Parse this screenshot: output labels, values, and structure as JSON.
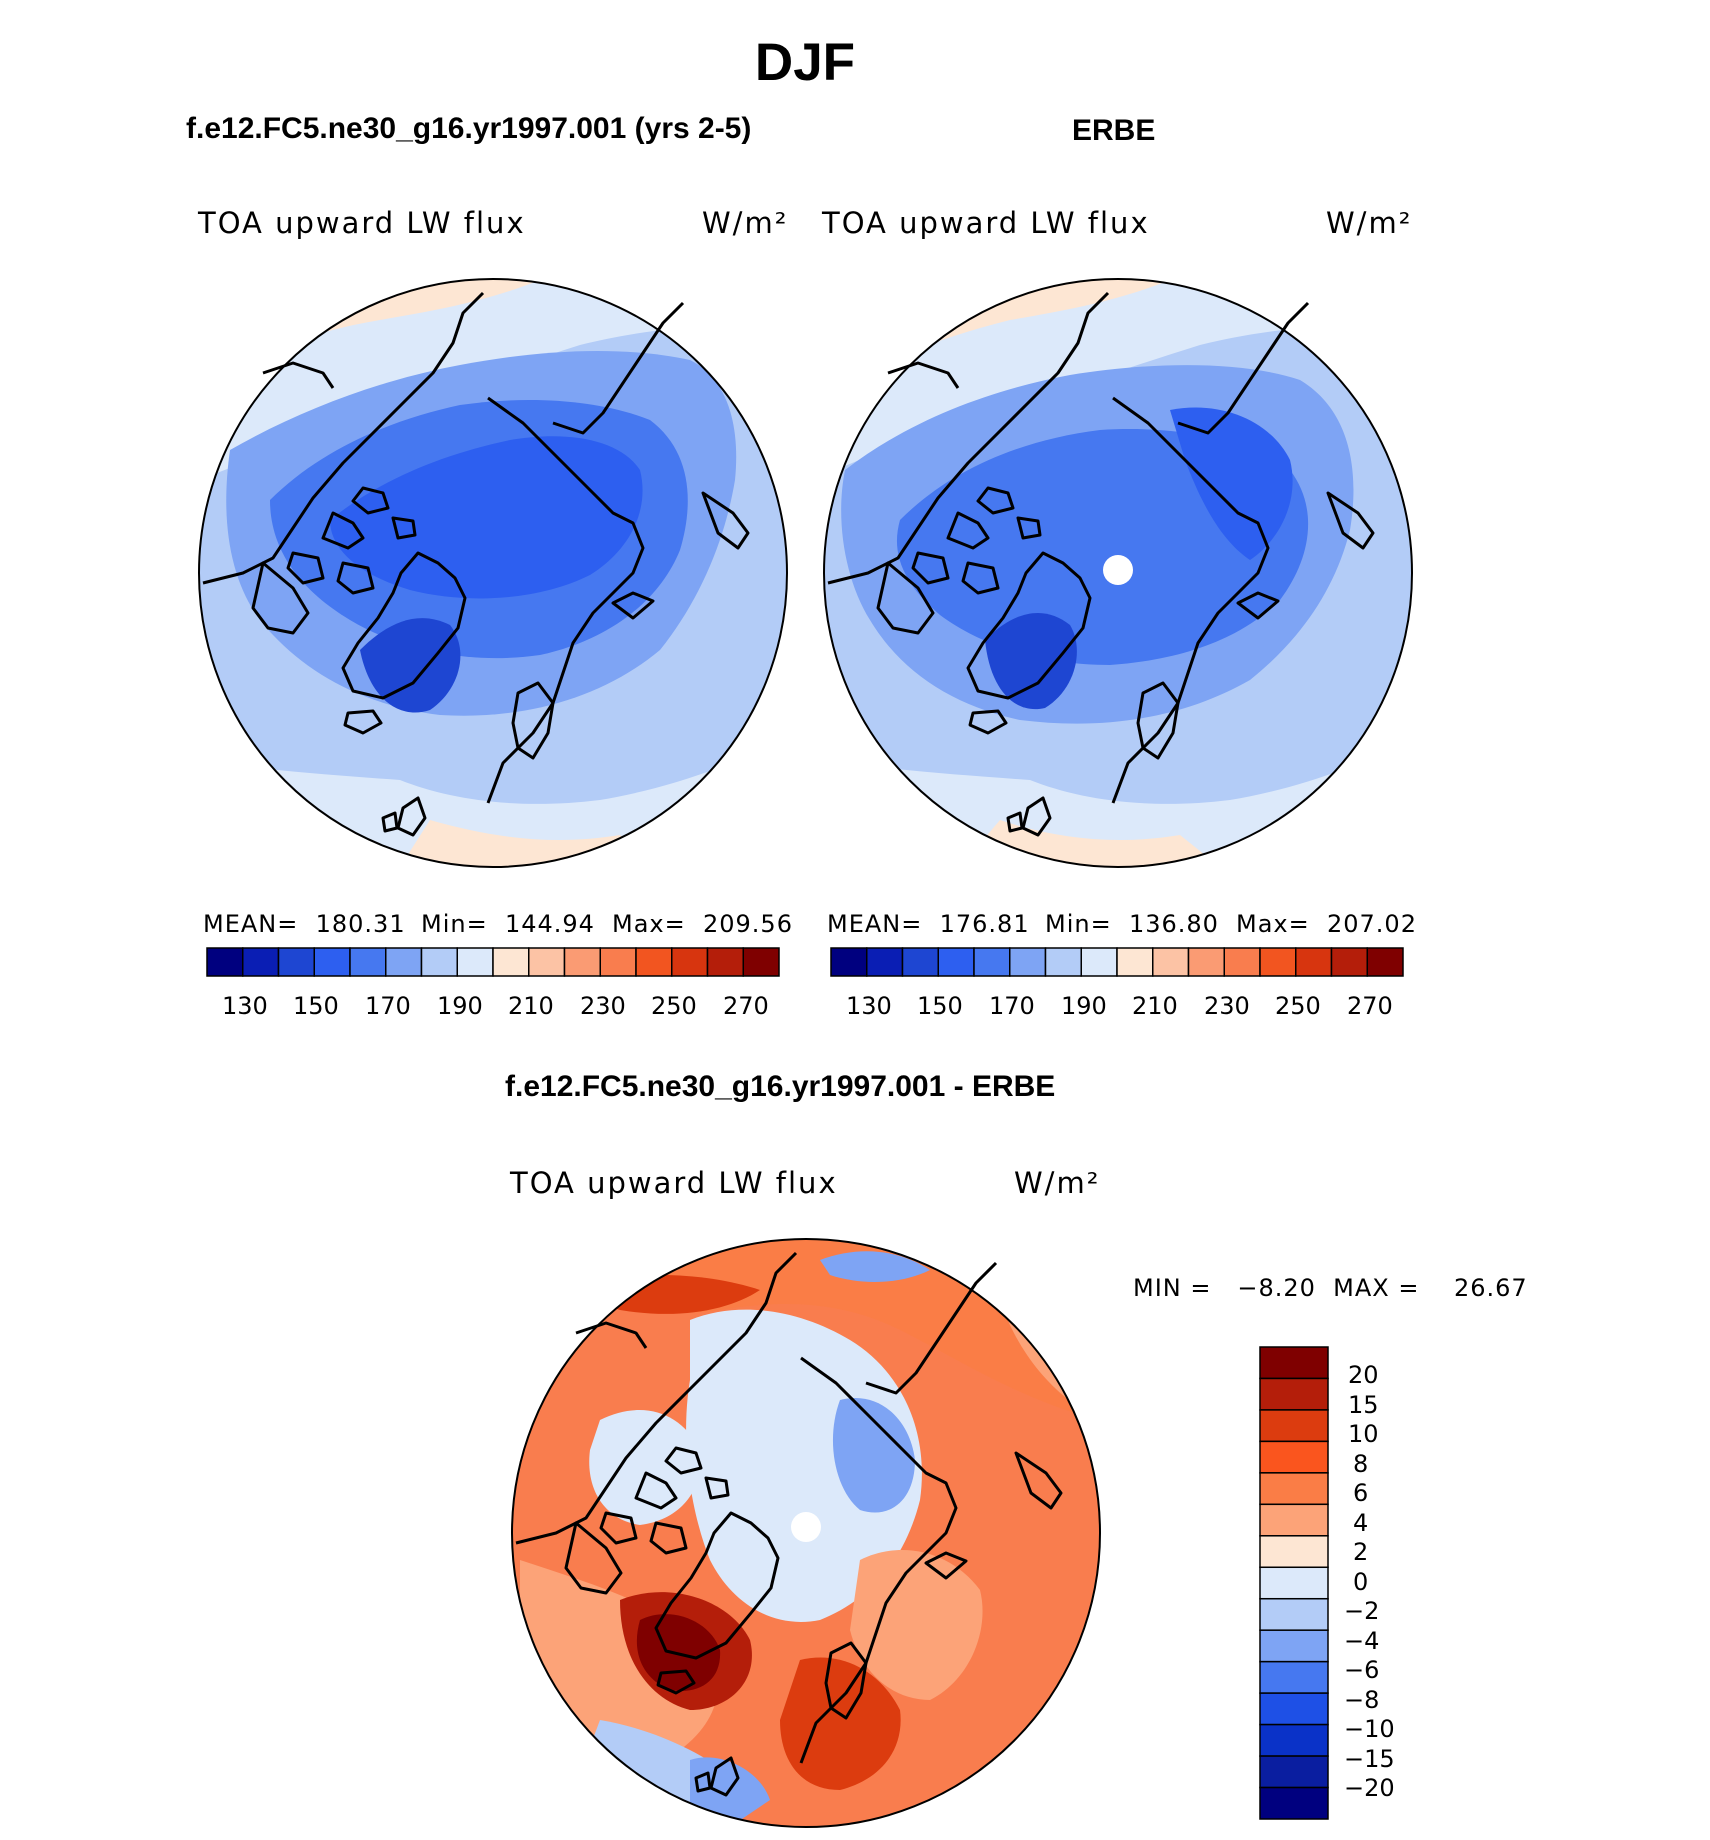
{
  "figure": {
    "title": "DJF"
  },
  "panels": [
    {
      "id": "model",
      "title": "f.e12.FC5.ne30_g16.yr1997.001 (yrs 2-5)",
      "variable": "TOA upward LW flux",
      "units": "W/m²",
      "mean": "MEAN=  180.31",
      "min": "Min=  144.94",
      "max": "Max=  209.56"
    },
    {
      "id": "obs",
      "title": "ERBE",
      "variable": "TOA upward LW flux",
      "units": "W/m²",
      "mean": "MEAN=  176.81",
      "min": "Min=  136.80",
      "max": "Max=  207.02"
    },
    {
      "id": "diff",
      "title": "f.e12.FC5.ne30_g16.yr1997.001 - ERBE",
      "variable": "TOA upward LW flux",
      "units": "W/m²",
      "minmax": "MIN =   −8.20  MAX =    26.67"
    }
  ],
  "colorbar_main": {
    "colors": [
      "#00007f",
      "#0a1eb4",
      "#1e46d2",
      "#2d5ff0",
      "#4678f0",
      "#7ea4f4",
      "#b3ccf7",
      "#dce9fa",
      "#fde6d3",
      "#fcc3a5",
      "#fa9b73",
      "#f97d4e",
      "#f25520",
      "#d7350f",
      "#b41e0a",
      "#7f0000"
    ],
    "tick_labels": [
      "130",
      "150",
      "170",
      "190",
      "210",
      "230",
      "250",
      "270"
    ]
  },
  "colorbar_diff": {
    "colors": [
      "#7f0000",
      "#b41e0a",
      "#dc3c0f",
      "#fa551e",
      "#fa7d46",
      "#fca378",
      "#fde6d3",
      "#dce9fa",
      "#b3ccf7",
      "#7ea4f4",
      "#4678f0",
      "#1e50e6",
      "#0a32c8",
      "#0a1ea0",
      "#00007f"
    ],
    "tick_labels": [
      "20",
      "15",
      "10",
      "8",
      "6",
      "4",
      "2",
      "0",
      "−2",
      "−4",
      "−6",
      "−8",
      "−10",
      "−15",
      "−20"
    ]
  },
  "map_fills": {
    "model": {
      "background": "#b3ccf7",
      "ring": "#dce9fa",
      "warm": "#fde6d3",
      "mid": "#7ea4f4",
      "deep": "#4678f0",
      "deeper": "#2d5ff0",
      "core": "#1e46d2"
    },
    "obs": {
      "background": "#b3ccf7",
      "ring": "#dce9fa",
      "warm": "#fde6d3",
      "mid": "#7ea4f4",
      "deep": "#4678f0",
      "deeper": "#2d5ff0",
      "core": "#1e46d2"
    },
    "diff": {
      "background": "#f97d4e",
      "light": "#fca378",
      "pale": "#fde6d3",
      "cool": "#dce9fa",
      "cooler": "#b3ccf7",
      "blue": "#7ea4f4",
      "dark": "#dc3c0f",
      "darkest": "#b41e0a"
    }
  }
}
